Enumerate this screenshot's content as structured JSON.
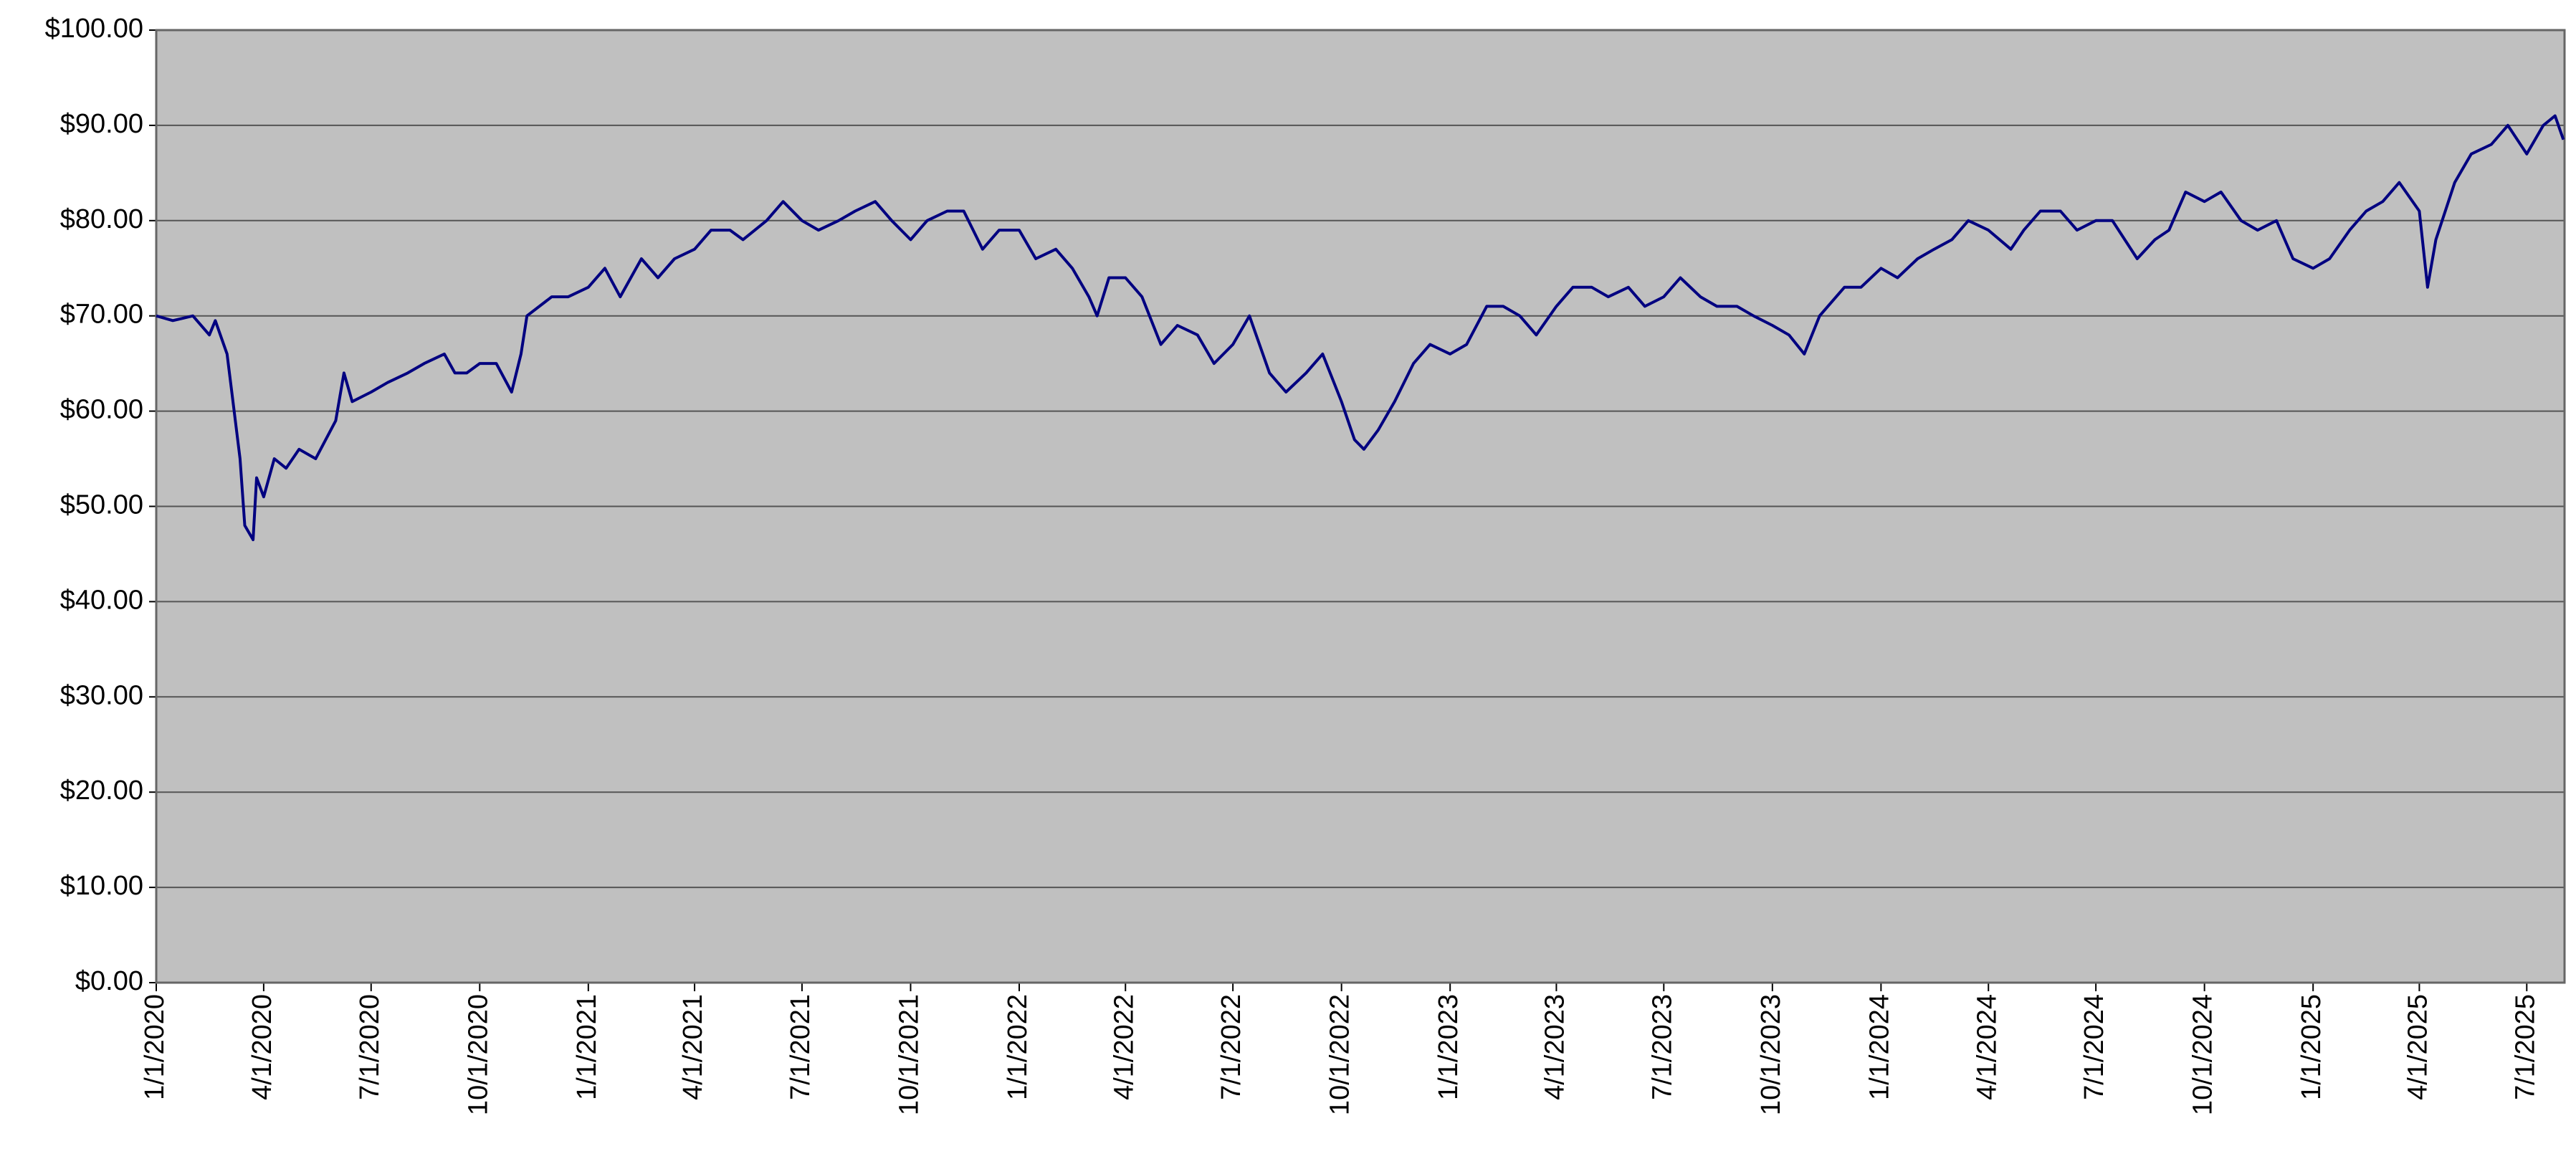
{
  "chart_data": {
    "type": "line",
    "x": [
      "1/1/2020",
      "1/15/2020",
      "2/1/2020",
      "2/15/2020",
      "2/20/2020",
      "3/1/2020",
      "3/5/2020",
      "3/12/2020",
      "3/16/2020",
      "3/23/2020",
      "3/26/2020",
      "4/1/2020",
      "4/10/2020",
      "4/20/2020",
      "5/1/2020",
      "5/15/2020",
      "6/1/2020",
      "6/8/2020",
      "6/15/2020",
      "7/1/2020",
      "7/15/2020",
      "8/1/2020",
      "8/15/2020",
      "9/1/2020",
      "9/10/2020",
      "9/20/2020",
      "10/1/2020",
      "10/15/2020",
      "10/28/2020",
      "11/5/2020",
      "11/10/2020",
      "12/1/2020",
      "12/15/2020",
      "1/1/2021",
      "1/15/2021",
      "1/28/2021",
      "2/15/2021",
      "3/1/2021",
      "3/15/2021",
      "4/1/2021",
      "4/15/2021",
      "5/1/2021",
      "5/12/2021",
      "6/1/2021",
      "6/15/2021",
      "7/1/2021",
      "7/15/2021",
      "8/1/2021",
      "8/15/2021",
      "9/1/2021",
      "9/15/2021",
      "10/1/2021",
      "10/15/2021",
      "11/1/2021",
      "11/15/2021",
      "12/1/2021",
      "12/15/2021",
      "1/1/2022",
      "1/15/2022",
      "2/1/2022",
      "2/15/2022",
      "3/1/2022",
      "3/8/2022",
      "3/18/2022",
      "4/1/2022",
      "4/15/2022",
      "5/1/2022",
      "5/15/2022",
      "6/1/2022",
      "6/15/2022",
      "7/1/2022",
      "7/15/2022",
      "8/1/2022",
      "8/15/2022",
      "9/1/2022",
      "9/15/2022",
      "10/1/2022",
      "10/12/2022",
      "10/20/2022",
      "11/1/2022",
      "11/15/2022",
      "12/1/2022",
      "12/15/2022",
      "1/1/2023",
      "1/15/2023",
      "2/1/2023",
      "2/15/2023",
      "3/1/2023",
      "3/15/2023",
      "4/1/2023",
      "4/15/2023",
      "5/1/2023",
      "5/15/2023",
      "6/1/2023",
      "6/15/2023",
      "7/1/2023",
      "7/15/2023",
      "8/1/2023",
      "8/15/2023",
      "9/1/2023",
      "9/15/2023",
      "10/1/2023",
      "10/15/2023",
      "10/28/2023",
      "11/10/2023",
      "12/1/2023",
      "12/15/2023",
      "1/1/2024",
      "1/15/2024",
      "2/1/2024",
      "2/15/2024",
      "3/1/2024",
      "3/15/2024",
      "4/1/2024",
      "4/20/2024",
      "5/1/2024",
      "5/15/2024",
      "6/1/2024",
      "6/15/2024",
      "7/1/2024",
      "7/15/2024",
      "8/5/2024",
      "8/20/2024",
      "9/1/2024",
      "9/15/2024",
      "10/1/2024",
      "10/15/2024",
      "11/1/2024",
      "11/15/2024",
      "12/1/2024",
      "12/15/2024",
      "1/1/2025",
      "1/15/2025",
      "2/1/2025",
      "2/15/2025",
      "3/1/2025",
      "3/15/2025",
      "4/1/2025",
      "4/8/2025",
      "4/15/2025",
      "5/1/2025",
      "5/15/2025",
      "6/1/2025",
      "6/15/2025",
      "7/1/2025",
      "7/15/2025",
      "7/25/2025",
      "8/1/2025"
    ],
    "values": [
      70,
      69.5,
      70,
      68,
      69.5,
      66,
      62,
      55,
      48,
      46.5,
      53,
      51,
      55,
      54,
      56,
      55,
      59,
      64,
      61,
      62,
      63,
      64,
      65,
      66,
      64,
      64,
      65,
      65,
      62,
      66,
      70,
      72,
      72,
      73,
      75,
      72,
      76,
      74,
      76,
      77,
      79,
      79,
      78,
      80,
      82,
      80,
      79,
      80,
      81,
      82,
      80,
      78,
      80,
      81,
      81,
      77,
      79,
      79,
      76,
      77,
      75,
      72,
      70,
      74,
      74,
      72,
      67,
      69,
      68,
      65,
      67,
      70,
      64,
      62,
      64,
      66,
      61,
      57,
      56,
      58,
      61,
      65,
      67,
      66,
      67,
      71,
      71,
      70,
      68,
      71,
      73,
      73,
      72,
      73,
      71,
      72,
      74,
      72,
      71,
      71,
      70,
      69,
      68,
      66,
      70,
      73,
      73,
      75,
      74,
      76,
      77,
      78,
      80,
      79,
      77,
      79,
      81,
      81,
      79,
      80,
      80,
      76,
      78,
      79,
      83,
      82,
      83,
      80,
      79,
      80,
      76,
      75,
      76,
      79,
      81,
      82,
      84,
      81,
      73,
      78,
      84,
      87,
      88,
      90,
      87,
      90,
      91,
      88.5
    ],
    "color": "#000080",
    "xlim": [
      "1/1/2020",
      "8/2/2025"
    ],
    "xticks": [
      "1/1/2020",
      "4/1/2020",
      "7/1/2020",
      "10/1/2020",
      "1/1/2021",
      "4/1/2021",
      "7/1/2021",
      "10/1/2021",
      "1/1/2022",
      "4/1/2022",
      "7/1/2022",
      "10/1/2022",
      "1/1/2023",
      "4/1/2023",
      "7/1/2023",
      "10/1/2023",
      "1/1/2024",
      "4/1/2024",
      "7/1/2024",
      "10/1/2024",
      "1/1/2025",
      "4/1/2025",
      "7/1/2025"
    ],
    "ylim": [
      0,
      100
    ],
    "yticks": [
      {
        "value": 0,
        "label": "$0.00"
      },
      {
        "value": 10,
        "label": "$10.00"
      },
      {
        "value": 20,
        "label": "$20.00"
      },
      {
        "value": 30,
        "label": "$30.00"
      },
      {
        "value": 40,
        "label": "$40.00"
      },
      {
        "value": 50,
        "label": "$50.00"
      },
      {
        "value": 60,
        "label": "$60.00"
      },
      {
        "value": 70,
        "label": "$70.00"
      },
      {
        "value": 80,
        "label": "$80.00"
      },
      {
        "value": 90,
        "label": "$90.00"
      },
      {
        "value": 100,
        "label": "$100.00"
      }
    ],
    "grid": true
  }
}
